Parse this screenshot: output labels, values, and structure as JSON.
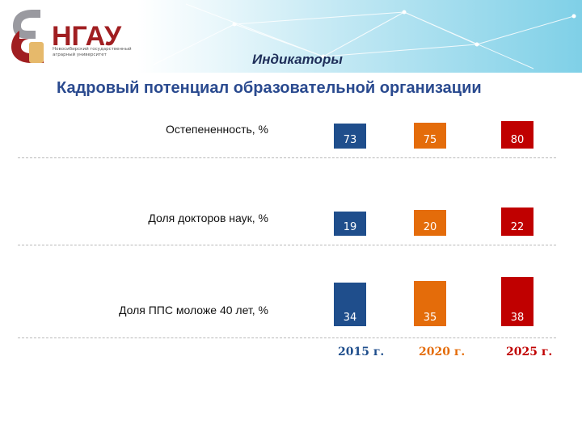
{
  "logo": {
    "name": "НГАУ",
    "subtitle": "Новосибирский государственный аграрный университет"
  },
  "header": {
    "section": "Индикаторы",
    "title": "Кадровый потенциал образовательной организации"
  },
  "chart_data": {
    "type": "bar",
    "categories": [
      "Остепененность, %",
      "Доля докторов наук, %",
      "Доля ППС моложе 40 лет, %"
    ],
    "series": [
      {
        "name": "2015 г.",
        "color": "#1f4e8c",
        "values": [
          73,
          19,
          34
        ]
      },
      {
        "name": "2020 г.",
        "color": "#e46c0a",
        "values": [
          75,
          20,
          35
        ]
      },
      {
        "name": "2025 г.",
        "color": "#c00000",
        "values": [
          80,
          22,
          38
        ]
      }
    ]
  }
}
